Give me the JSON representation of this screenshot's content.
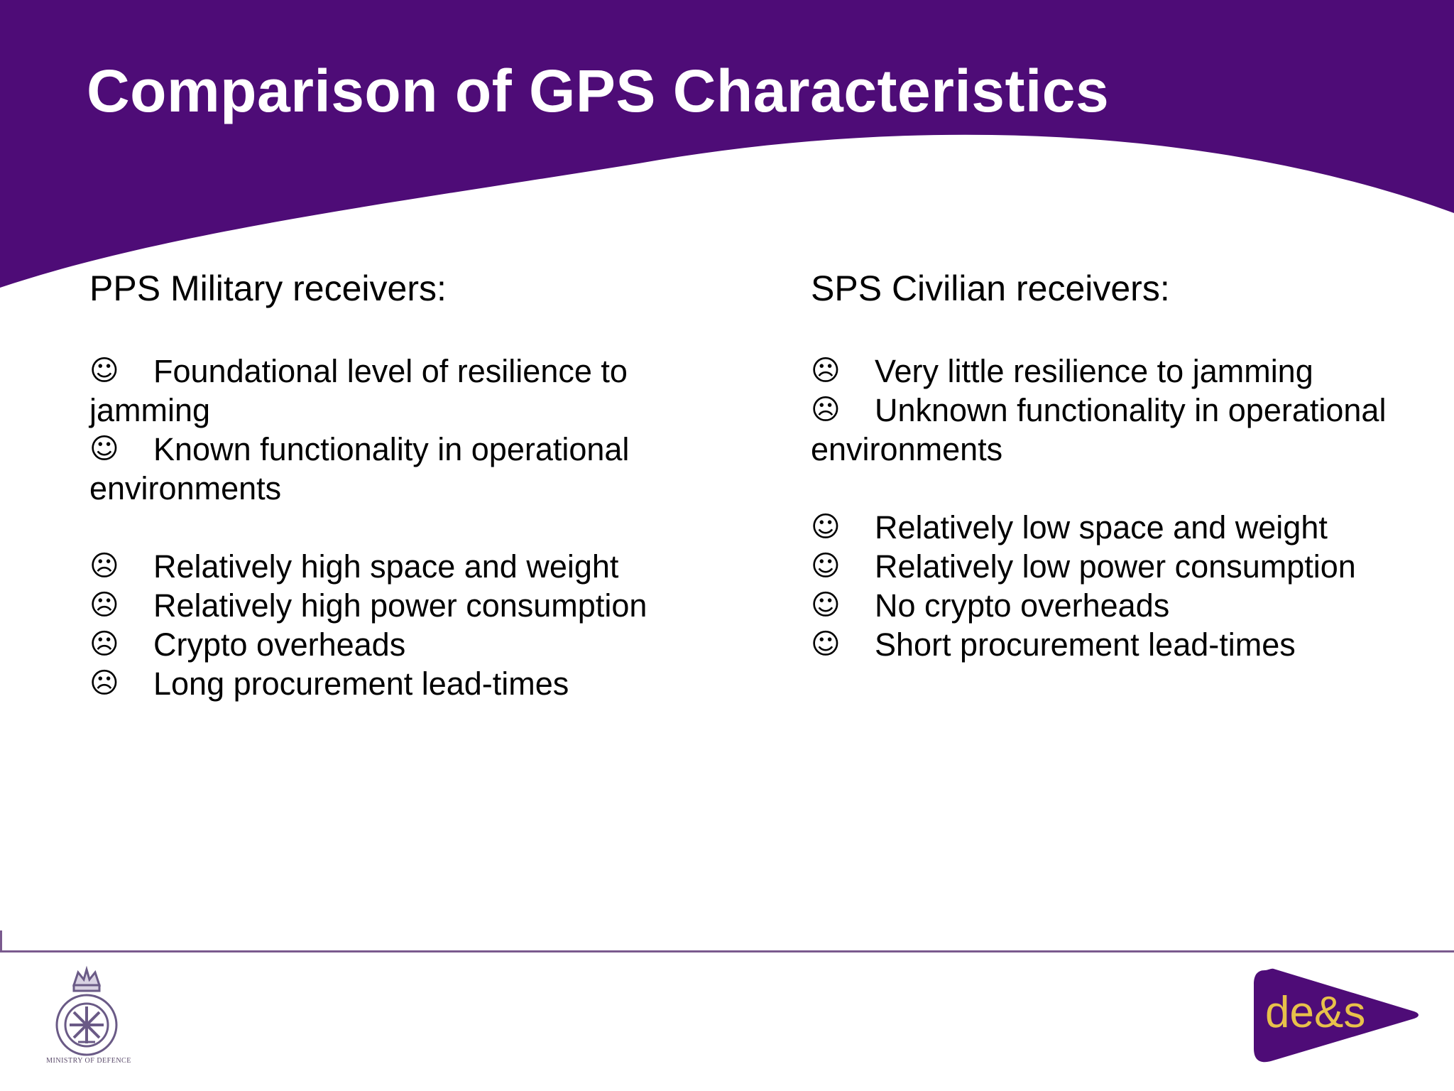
{
  "colors": {
    "header_purple": "#4e0c77",
    "text": "#000000",
    "title_text": "#ffffff",
    "footer_rule": "#7a5a8e",
    "logo_purple": "#4e0c77",
    "logo_gold": "#e8c14a"
  },
  "slide": {
    "title": "Comparison of GPS Characteristics"
  },
  "left_column": {
    "heading": "PPS Military receivers:",
    "groups": [
      {
        "items": [
          {
            "icon": "smiley-face-icon",
            "glyph": "☺",
            "text": "Foundational level of resilience to jamming"
          },
          {
            "icon": "smiley-face-icon",
            "glyph": "☺",
            "text": "Known functionality in operational environments"
          }
        ]
      },
      {
        "items": [
          {
            "icon": "frowning-face-icon",
            "glyph": "☹",
            "text": "Relatively high space and weight"
          },
          {
            "icon": "frowning-face-icon",
            "glyph": "☹",
            "text": "Relatively high power consumption"
          },
          {
            "icon": "frowning-face-icon",
            "glyph": "☹",
            "text": "Crypto overheads"
          },
          {
            "icon": "frowning-face-icon",
            "glyph": "☹",
            "text": "Long procurement lead-times"
          }
        ]
      }
    ]
  },
  "right_column": {
    "heading": "SPS Civilian receivers:",
    "groups": [
      {
        "items": [
          {
            "icon": "frowning-face-icon",
            "glyph": "☹",
            "text": "Very little resilience to jamming"
          },
          {
            "icon": "frowning-face-icon",
            "glyph": "☹",
            "text": "Unknown functionality in operational environments"
          }
        ]
      },
      {
        "items": [
          {
            "icon": "smiley-face-icon",
            "glyph": "☺",
            "text": "Relatively low space and weight"
          },
          {
            "icon": "smiley-face-icon",
            "glyph": "☺",
            "text": "Relatively low power consumption"
          },
          {
            "icon": "smiley-face-icon",
            "glyph": "☺",
            "text": "No crypto overheads"
          },
          {
            "icon": "smiley-face-icon",
            "glyph": "☺",
            "text": "Short procurement lead-times"
          }
        ]
      }
    ]
  },
  "footer": {
    "left_logo_caption": "MINISTRY OF DEFENCE",
    "right_logo_text": "de&s",
    "left_logo_icon": "ministry-of-defence-crest-icon",
    "right_logo_icon": "des-logo-icon"
  }
}
